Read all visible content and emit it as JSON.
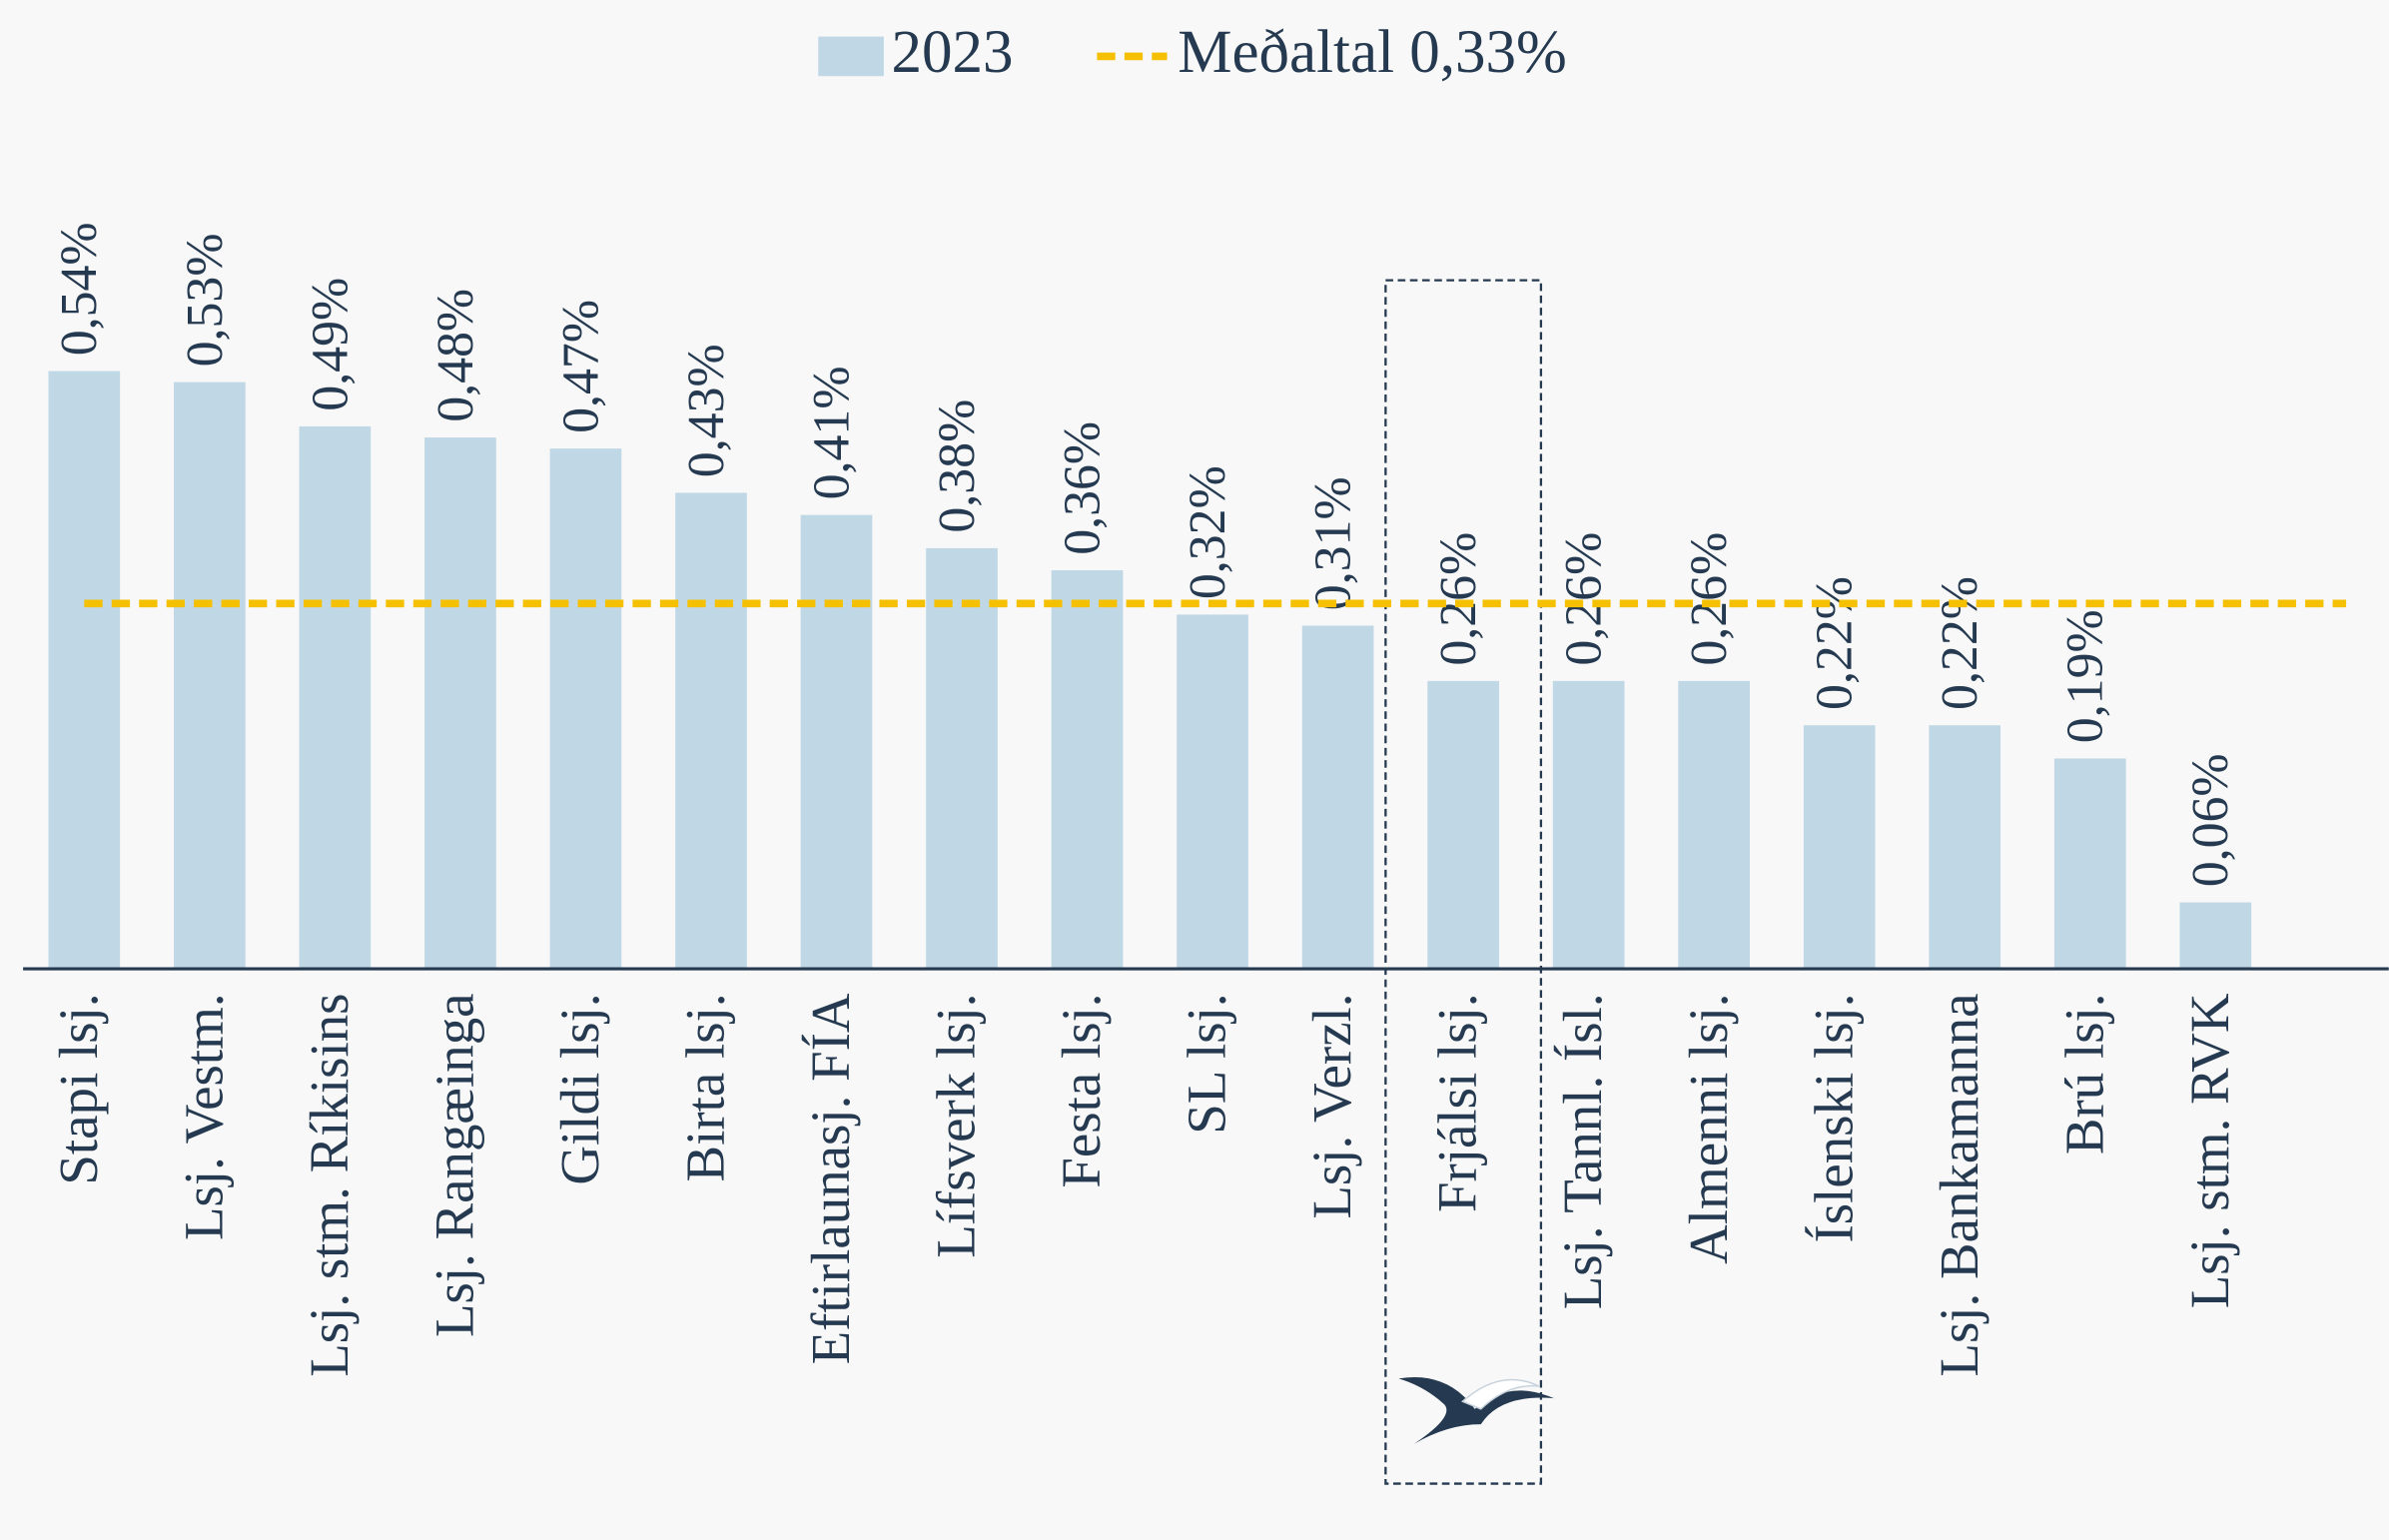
{
  "chart_data": {
    "type": "bar",
    "categories": [
      "Stapi lsj.",
      "Lsj. Vestm.",
      "Lsj. stm. Ríkisins",
      "Lsj. Rangæinga",
      "Gildi lsj.",
      "Birta lsj.",
      "Eftirlaunasj. FÍA",
      "Lífsverk lsj.",
      "Festa lsj.",
      "SL lsj.",
      "Lsj. Verzl.",
      "Frjálsi lsj.",
      "Lsj. Tannl. Ísl.",
      "Almenni lsj.",
      "Íslenski lsj.",
      "Lsj. Bankamanna",
      "Brú lsj.",
      "Lsj. stm. RVK"
    ],
    "series": [
      {
        "name": "2023",
        "color": "#c0d7e6",
        "values": [
          0.54,
          0.53,
          0.49,
          0.48,
          0.47,
          0.43,
          0.41,
          0.38,
          0.36,
          0.32,
          0.31,
          0.26,
          0.26,
          0.26,
          0.22,
          0.22,
          0.19,
          0.06
        ],
        "value_labels": [
          "0,54%",
          "0,53%",
          "0,49%",
          "0,48%",
          "0,47%",
          "0,43%",
          "0,41%",
          "0,38%",
          "0,36%",
          "0,32%",
          "0,31%",
          "0,26%",
          "0,26%",
          "0,26%",
          "0,22%",
          "0,22%",
          "0,19%",
          "0,06%"
        ]
      }
    ],
    "average": {
      "name": "Meðaltal 0,33%",
      "value": 0.33,
      "color": "#f5c000"
    },
    "highlight_category": "Frjálsi lsj.",
    "ylim": [
      0,
      0.6
    ],
    "grid": false
  }
}
